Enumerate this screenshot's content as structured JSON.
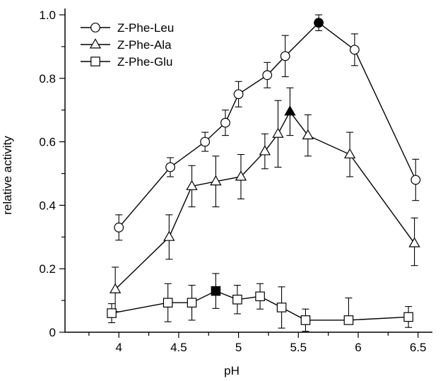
{
  "chart_data": {
    "type": "line",
    "xlabel": "pH",
    "ylabel": "relative activity",
    "xlim": [
      3.55,
      6.62
    ],
    "ylim": [
      0,
      1.02
    ],
    "x_ticks": [
      {
        "value": 4,
        "label": "4"
      },
      {
        "value": 4.5,
        "label": "4.5"
      },
      {
        "value": 5,
        "label": "5"
      },
      {
        "value": 5.5,
        "label": "5.5"
      },
      {
        "value": 6,
        "label": "6"
      },
      {
        "value": 6.5,
        "label": "6.5"
      }
    ],
    "x_minor_ticks": [
      3.75,
      4.25,
      4.75,
      5.25,
      5.75,
      6.25
    ],
    "y_ticks": [
      {
        "value": 0,
        "label": "0"
      },
      {
        "value": 0.2,
        "label": "0.2"
      },
      {
        "value": 0.4,
        "label": "0.4"
      },
      {
        "value": 0.6,
        "label": "0.6"
      },
      {
        "value": 0.8,
        "label": "0.8"
      },
      {
        "value": 1.0,
        "label": "1.0"
      }
    ],
    "y_minor_ticks": [
      0.1,
      0.3,
      0.5,
      0.7,
      0.9
    ],
    "grid": false,
    "legend_position": "top-left",
    "series": [
      {
        "name": "Z-Phe-Leu",
        "marker": "circle",
        "points": [
          {
            "x": 4.0,
            "y": 0.33,
            "err_up": 0.04,
            "err_down": 0.04,
            "filled": false
          },
          {
            "x": 4.43,
            "y": 0.52,
            "err_up": 0.03,
            "err_down": 0.03,
            "filled": false
          },
          {
            "x": 4.72,
            "y": 0.6,
            "err_up": 0.03,
            "err_down": 0.03,
            "filled": false
          },
          {
            "x": 4.89,
            "y": 0.66,
            "err_up": 0.04,
            "err_down": 0.04,
            "filled": false
          },
          {
            "x": 5.0,
            "y": 0.75,
            "err_up": 0.04,
            "err_down": 0.04,
            "filled": false
          },
          {
            "x": 5.24,
            "y": 0.81,
            "err_up": 0.04,
            "err_down": 0.04,
            "filled": false
          },
          {
            "x": 5.39,
            "y": 0.87,
            "err_up": 0.065,
            "err_down": 0.065,
            "filled": false
          },
          {
            "x": 5.67,
            "y": 0.975,
            "err_up": 0.025,
            "err_down": 0.025,
            "filled": true
          },
          {
            "x": 5.97,
            "y": 0.89,
            "err_up": 0.05,
            "err_down": 0.05,
            "filled": false
          },
          {
            "x": 6.48,
            "y": 0.48,
            "err_up": 0.065,
            "err_down": 0.065,
            "filled": false
          }
        ]
      },
      {
        "name": "Z-Phe-Ala",
        "marker": "triangle",
        "points": [
          {
            "x": 3.97,
            "y": 0.135,
            "err_up": 0.07,
            "err_down": 0.07,
            "filled": false
          },
          {
            "x": 4.42,
            "y": 0.3,
            "err_up": 0.07,
            "err_down": 0.07,
            "filled": false
          },
          {
            "x": 4.61,
            "y": 0.46,
            "err_up": 0.065,
            "err_down": 0.065,
            "filled": false
          },
          {
            "x": 4.81,
            "y": 0.475,
            "err_up": 0.08,
            "err_down": 0.08,
            "filled": false
          },
          {
            "x": 5.02,
            "y": 0.49,
            "err_up": 0.07,
            "err_down": 0.07,
            "filled": false
          },
          {
            "x": 5.22,
            "y": 0.57,
            "err_up": 0.055,
            "err_down": 0.055,
            "filled": false
          },
          {
            "x": 5.33,
            "y": 0.625,
            "err_up": 0.105,
            "err_down": 0.105,
            "filled": false
          },
          {
            "x": 5.43,
            "y": 0.695,
            "err_up": 0.075,
            "err_down": 0.075,
            "filled": true
          },
          {
            "x": 5.58,
            "y": 0.62,
            "err_up": 0.065,
            "err_down": 0.065,
            "filled": false
          },
          {
            "x": 5.93,
            "y": 0.56,
            "err_up": 0.07,
            "err_down": 0.07,
            "filled": false
          },
          {
            "x": 6.47,
            "y": 0.28,
            "err_up": 0.08,
            "err_down": 0.07,
            "filled": false
          }
        ]
      },
      {
        "name": "Z-Phe-Glu",
        "marker": "square",
        "points": [
          {
            "x": 3.94,
            "y": 0.06,
            "err_up": 0.03,
            "err_down": 0.03,
            "filled": false
          },
          {
            "x": 4.41,
            "y": 0.093,
            "err_up": 0.06,
            "err_down": 0.06,
            "filled": false
          },
          {
            "x": 4.61,
            "y": 0.093,
            "err_up": 0.055,
            "err_down": 0.055,
            "filled": false
          },
          {
            "x": 4.81,
            "y": 0.13,
            "err_up": 0.055,
            "err_down": 0.055,
            "filled": true
          },
          {
            "x": 4.99,
            "y": 0.103,
            "err_up": 0.045,
            "err_down": 0.045,
            "filled": false
          },
          {
            "x": 5.18,
            "y": 0.113,
            "err_up": 0.04,
            "err_down": 0.04,
            "filled": false
          },
          {
            "x": 5.36,
            "y": 0.078,
            "err_up": 0.065,
            "err_down": 0.065,
            "filled": false
          },
          {
            "x": 5.56,
            "y": 0.038,
            "err_up": 0.035,
            "err_down": 0.035,
            "filled": false
          },
          {
            "x": 5.92,
            "y": 0.038,
            "err_up": 0.07,
            "err_down": 0.0,
            "filled": false
          },
          {
            "x": 6.42,
            "y": 0.048,
            "err_up": 0.033,
            "err_down": 0.033,
            "filled": false
          }
        ]
      }
    ]
  }
}
